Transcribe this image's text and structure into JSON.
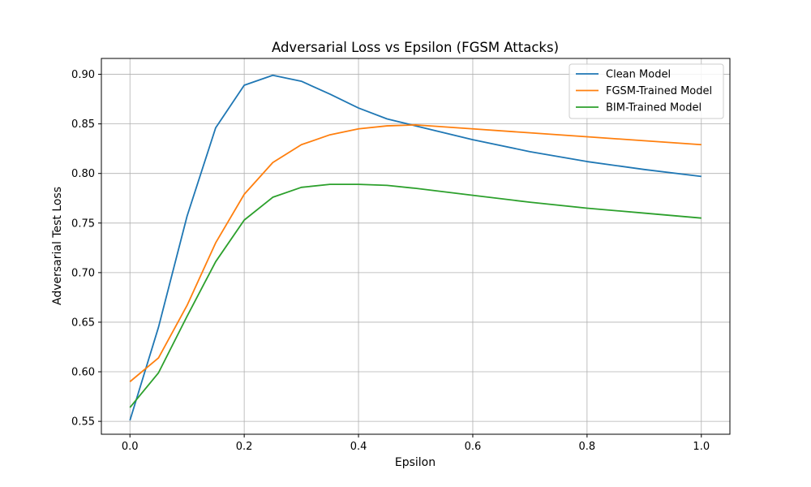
{
  "chart_data": {
    "type": "line",
    "title": "Adversarial Loss vs Epsilon (FGSM Attacks)",
    "xlabel": "Epsilon",
    "ylabel": "Adversarial Test Loss",
    "xlim": [
      -0.05,
      1.05
    ],
    "ylim": [
      0.537,
      0.916
    ],
    "x_ticks": [
      0.0,
      0.2,
      0.4,
      0.6,
      0.8,
      1.0
    ],
    "x_tick_labels": [
      "0.0",
      "0.2",
      "0.4",
      "0.6",
      "0.8",
      "1.0"
    ],
    "y_ticks": [
      0.55,
      0.6,
      0.65,
      0.7,
      0.75,
      0.8,
      0.85,
      0.9
    ],
    "y_tick_labels": [
      "0.55",
      "0.60",
      "0.65",
      "0.70",
      "0.75",
      "0.80",
      "0.85",
      "0.90"
    ],
    "grid": true,
    "legend_position": "top-right",
    "x": [
      0.0,
      0.05,
      0.1,
      0.15,
      0.2,
      0.25,
      0.3,
      0.35,
      0.4,
      0.45,
      0.5,
      0.6,
      0.7,
      0.8,
      0.9,
      1.0
    ],
    "series": [
      {
        "name": "Clean Model",
        "color": "#1f77b4",
        "values": [
          0.551,
          0.645,
          0.757,
          0.846,
          0.889,
          0.899,
          0.893,
          0.88,
          0.866,
          0.855,
          0.848,
          0.834,
          0.822,
          0.812,
          0.804,
          0.797
        ]
      },
      {
        "name": "FGSM-Trained Model",
        "color": "#ff7f0e",
        "values": [
          0.59,
          0.614,
          0.667,
          0.73,
          0.779,
          0.811,
          0.829,
          0.839,
          0.845,
          0.848,
          0.849,
          0.845,
          0.841,
          0.837,
          0.833,
          0.829
        ]
      },
      {
        "name": "BIM-Trained Model",
        "color": "#2ca02c",
        "values": [
          0.564,
          0.599,
          0.656,
          0.711,
          0.753,
          0.776,
          0.786,
          0.789,
          0.789,
          0.788,
          0.785,
          0.778,
          0.771,
          0.765,
          0.76,
          0.755
        ]
      }
    ]
  }
}
